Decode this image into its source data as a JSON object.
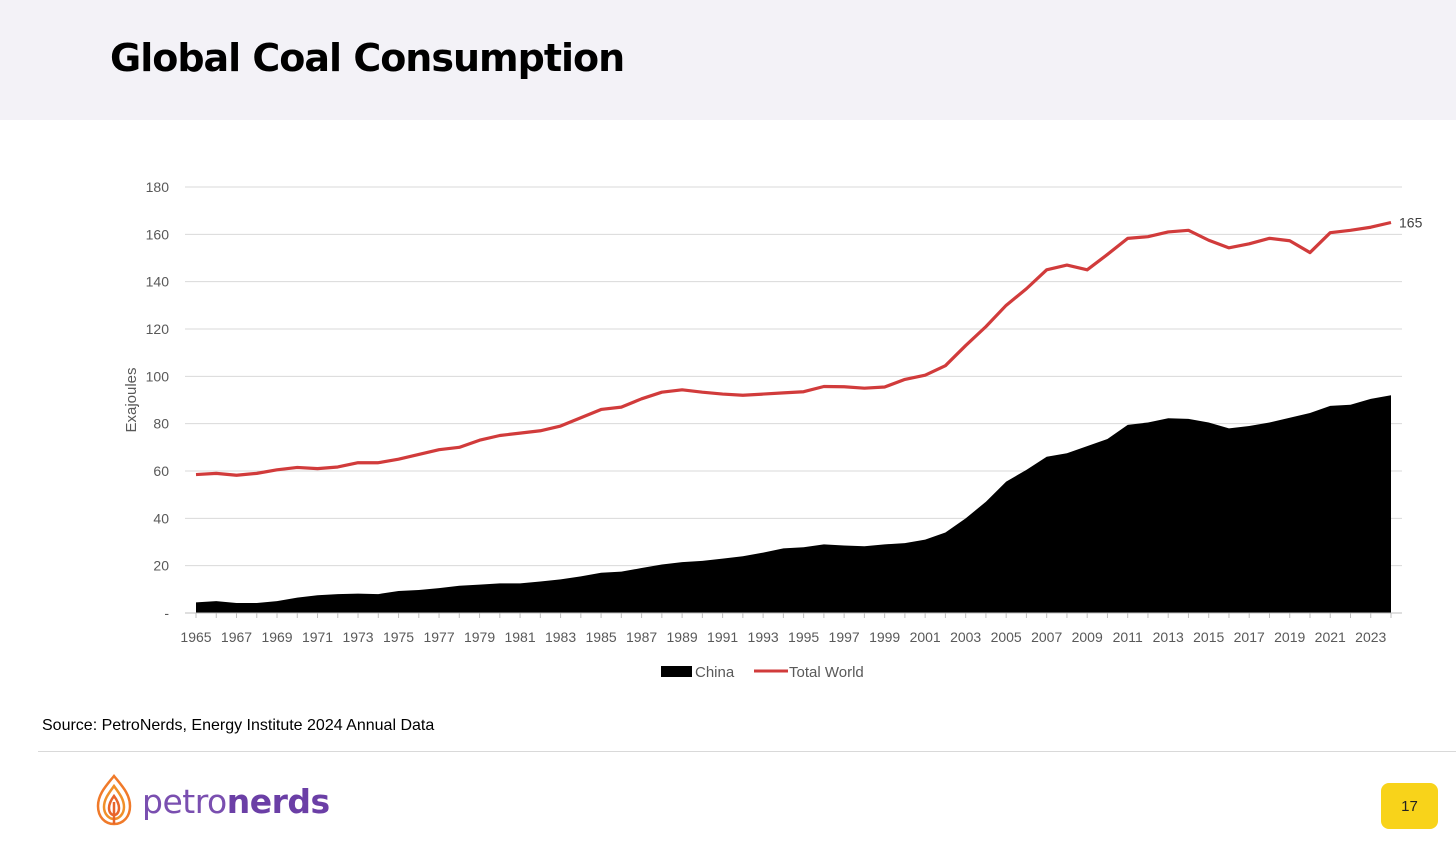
{
  "header": {
    "title": "Global Coal Consumption"
  },
  "footer": {
    "source": "Source: PetroNerds, Energy Institute 2024 Annual Data",
    "logo_prefix": "petro",
    "logo_suffix": "nerds",
    "page_number": "17"
  },
  "colors": {
    "total_world": "#d13b3b",
    "china": "#000000",
    "page_badge": "#f8d31a",
    "logo": "#7a4fb0"
  },
  "chart_data": {
    "type": "area+line",
    "title": "",
    "xlabel": "",
    "ylabel": "Exajoules",
    "ylim": [
      0,
      180
    ],
    "yticks": [
      "-",
      "20",
      "40",
      "60",
      "80",
      "100",
      "120",
      "140",
      "160",
      "180"
    ],
    "x": [
      1965,
      1966,
      1967,
      1968,
      1969,
      1970,
      1971,
      1972,
      1973,
      1974,
      1975,
      1976,
      1977,
      1978,
      1979,
      1980,
      1981,
      1982,
      1983,
      1984,
      1985,
      1986,
      1987,
      1988,
      1989,
      1990,
      1991,
      1992,
      1993,
      1994,
      1995,
      1996,
      1997,
      1998,
      1999,
      2000,
      2001,
      2002,
      2003,
      2004,
      2005,
      2006,
      2007,
      2008,
      2009,
      2010,
      2011,
      2012,
      2013,
      2014,
      2015,
      2016,
      2017,
      2018,
      2019,
      2020,
      2021,
      2022,
      2023,
      2024
    ],
    "xtick_labels": [
      "1965",
      "1967",
      "1969",
      "1971",
      "1973",
      "1975",
      "1977",
      "1979",
      "1981",
      "1983",
      "1985",
      "1987",
      "1989",
      "1991",
      "1993",
      "1995",
      "1997",
      "1999",
      "2001",
      "2003",
      "2005",
      "2007",
      "2009",
      "2011",
      "2013",
      "2015",
      "2017",
      "2019",
      "2021",
      "2023"
    ],
    "grid": true,
    "legend_position": "bottom",
    "series": [
      {
        "name": "China",
        "type": "area",
        "values": [
          4.5,
          5,
          4.2,
          4.2,
          5,
          6.5,
          7.5,
          8,
          8.2,
          8,
          9.3,
          9.7,
          10.5,
          11.5,
          12,
          12.5,
          12.5,
          13.3,
          14.2,
          15.5,
          17,
          17.5,
          19,
          20.5,
          21.5,
          22,
          23,
          24,
          25.5,
          27.3,
          27.8,
          29,
          28.5,
          28.2,
          29,
          29.5,
          31,
          34,
          40,
          47,
          55.5,
          60.5,
          66,
          67.5,
          70.5,
          73.5,
          79.5,
          80.5,
          82.3,
          82,
          80.5,
          78,
          79,
          80.5,
          82.5,
          84.5,
          87.5,
          88,
          90.5,
          92
        ]
      },
      {
        "name": "Total World",
        "type": "line",
        "values": [
          58.5,
          59,
          58.2,
          59,
          60.5,
          61.5,
          61,
          61.7,
          63.5,
          63.5,
          65,
          67,
          69,
          70,
          73,
          75,
          76,
          77,
          79,
          82.5,
          86,
          87,
          90.5,
          93.3,
          94.3,
          93.3,
          92.5,
          92,
          92.5,
          93,
          93.5,
          95.7,
          95.6,
          95,
          95.5,
          98.7,
          100.5,
          104.5,
          113,
          121,
          130,
          137,
          145,
          147,
          145,
          151.5,
          158.3,
          159,
          161,
          161.7,
          157.5,
          154.3,
          156,
          158.3,
          157.3,
          152.3,
          160.7,
          161.7,
          163,
          165
        ]
      }
    ],
    "annotations": [
      {
        "series": "Total World",
        "x": 2024,
        "text": "165"
      }
    ]
  }
}
